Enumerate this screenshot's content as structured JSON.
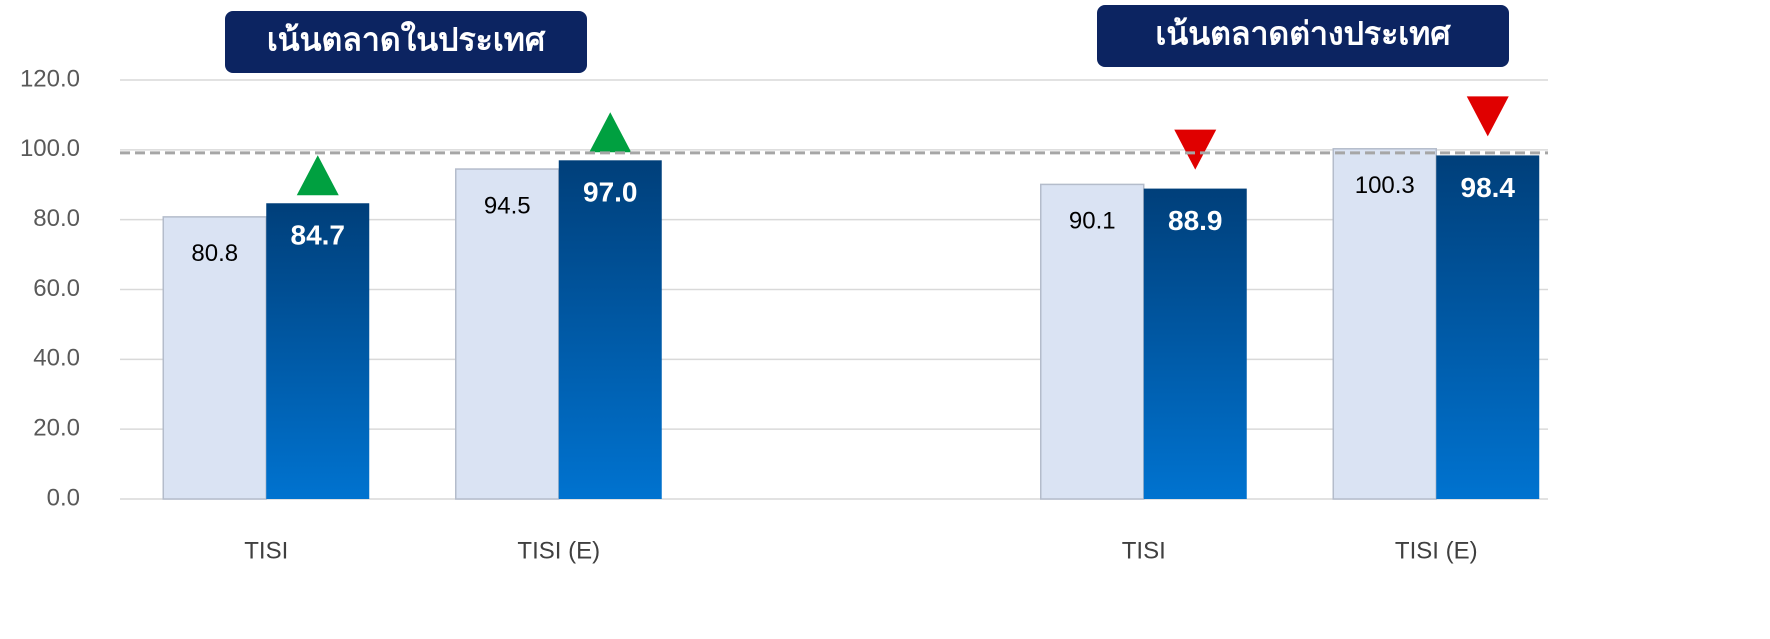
{
  "chart_data": {
    "type": "bar",
    "groups": [
      "เน้นตลาดในประเทศ",
      "เน้นตลาดต่างประเทศ"
    ],
    "categories": [
      "TISI",
      "TISI (E)",
      null,
      "TISI",
      "TISI (E)"
    ],
    "series": [
      {
        "color": "#dae3f3",
        "values": [
          80.8,
          94.5,
          null,
          90.1,
          100.3
        ]
      },
      {
        "color": "#0070cc",
        "values": [
          84.7,
          97.0,
          null,
          88.9,
          98.4
        ],
        "value_labels": [
          "84.7",
          "97.0",
          null,
          "88.9",
          "98.4"
        ]
      }
    ],
    "trend": [
      "up",
      "up",
      null,
      "down",
      "down"
    ],
    "trend_colors": {
      "up": "#00a040",
      "down": "#e00000"
    },
    "reference_line": 100,
    "ylim": [
      0,
      120
    ],
    "yticks": [
      {
        "value": 0,
        "label": "0.0"
      },
      {
        "value": 20,
        "label": "20.0"
      },
      {
        "value": 40,
        "label": "40.0"
      },
      {
        "value": 60,
        "label": "60.0"
      },
      {
        "value": 80,
        "label": "80.0"
      },
      {
        "value": 100,
        "label": "100.0"
      },
      {
        "value": 120,
        "label": "120.0"
      }
    ],
    "grid": true
  }
}
